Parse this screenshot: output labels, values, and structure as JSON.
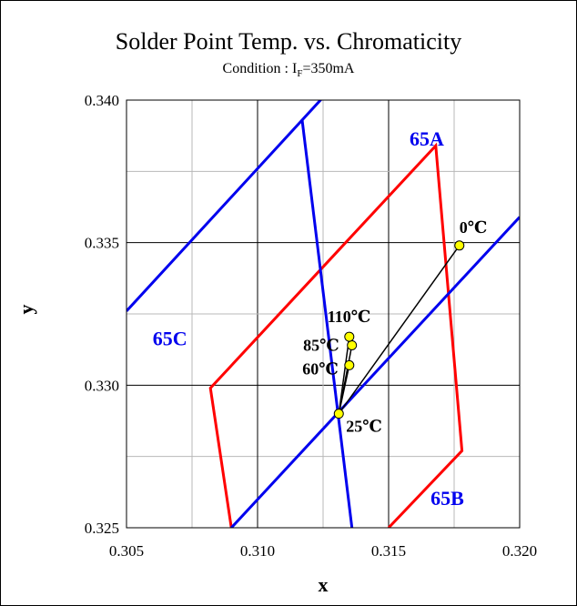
{
  "chart_data": {
    "type": "scatter",
    "title": "Solder Point Temp. vs. Chromaticity",
    "subtitle": {
      "prefix": "Condition : I",
      "subscript": "F",
      "suffix": "=350mA"
    },
    "xlabel": "x",
    "ylabel": "y",
    "xlim": [
      0.305,
      0.32
    ],
    "ylim": [
      0.325,
      0.34
    ],
    "x_ticks": [
      "0.305",
      "0.310",
      "0.315",
      "0.320"
    ],
    "y_ticks": [
      "0.325",
      "0.330",
      "0.335",
      "0.340"
    ],
    "grid": true,
    "colors": {
      "bin_65A": "#ff0000",
      "bins_65B_65C": "#0000ee",
      "series": "#000000",
      "marker_fill": "#ffff00"
    },
    "regions": [
      {
        "label": "65A",
        "color": "#ff0000",
        "points": [
          [
            0.309,
            0.325
          ],
          [
            0.3082,
            0.3299
          ],
          [
            0.3168,
            0.3384
          ],
          [
            0.3178,
            0.3277
          ],
          [
            0.315,
            0.325
          ]
        ]
      },
      {
        "label": "65B",
        "color": "#0000ee",
        "points": [
          [
            0.309,
            0.325
          ],
          [
            0.32,
            0.3359
          ]
        ]
      },
      {
        "label": "65C",
        "color": "#0000ee",
        "points": [
          [
            0.305,
            0.3326
          ],
          [
            0.3125,
            0.3401
          ]
        ]
      },
      {
        "label": "",
        "color": "#0000ee",
        "points": [
          [
            0.3117,
            0.3393
          ],
          [
            0.3136,
            0.325
          ]
        ]
      }
    ],
    "region_labels": [
      {
        "text": "65A",
        "x": 0.3158,
        "y": 0.3384
      },
      {
        "text": "65B",
        "x": 0.3166,
        "y": 0.3258
      },
      {
        "text": "65C",
        "x": 0.306,
        "y": 0.3314
      }
    ],
    "series": [
      {
        "points": [
          {
            "label": "0℃",
            "x": 0.3177,
            "y": 0.3349
          },
          {
            "label": "25℃",
            "x": 0.3131,
            "y": 0.329
          },
          {
            "label": "60℃",
            "x": 0.3135,
            "y": 0.3307
          },
          {
            "label": "85℃",
            "x": 0.3136,
            "y": 0.3314
          },
          {
            "label": "110℃",
            "x": 0.3135,
            "y": 0.3317
          }
        ]
      }
    ]
  }
}
